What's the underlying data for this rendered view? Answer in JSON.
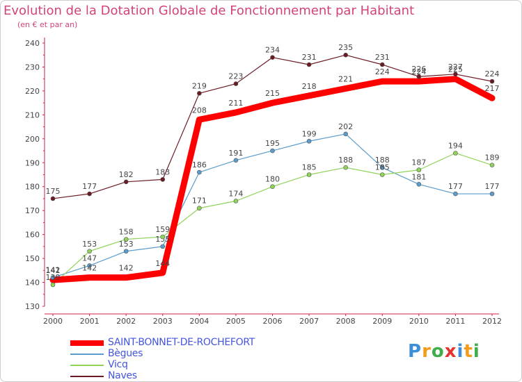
{
  "header": {
    "title": "Evolution de la Dotation Globale de Fonctionnement par Habitant",
    "subtitle": "(en € et par an)"
  },
  "logo": {
    "text": "Proxiti",
    "letters": [
      {
        "ch": "P",
        "color": "#3a8fd8"
      },
      {
        "ch": "r",
        "color": "#f39b1b"
      },
      {
        "ch": "o",
        "color": "#3fae49"
      },
      {
        "ch": "x",
        "color": "#e2352b"
      },
      {
        "ch": "i",
        "color": "#3a8fd8"
      },
      {
        "ch": "t",
        "color": "#f39b1b"
      },
      {
        "ch": "i",
        "color": "#3fae49"
      }
    ]
  },
  "chart_data": {
    "type": "line",
    "title": "Evolution de la Dotation Globale de Fonctionnement par Habitant",
    "subtitle": "(en € et par an)",
    "xlabel": "",
    "ylabel": "",
    "categories": [
      "2000",
      "2001",
      "2002",
      "2003",
      "2004",
      "2005",
      "2006",
      "2007",
      "2008",
      "2009",
      "2010",
      "2011",
      "2012"
    ],
    "ylim": [
      130,
      240
    ],
    "yticks": [
      130,
      140,
      150,
      160,
      170,
      180,
      190,
      200,
      210,
      220,
      230,
      240
    ],
    "grid": false,
    "legend_position": "bottom-left",
    "series": [
      {
        "name": "SAINT-BONNET-DE-ROCHEFORT",
        "color": "#ff0000",
        "values": [
          141,
          142,
          142,
          144,
          208,
          211,
          215,
          218,
          221,
          224,
          224,
          225,
          217
        ]
      },
      {
        "name": "Bègues",
        "color": "#5a9ccc",
        "values": [
          142,
          147,
          153,
          155,
          186,
          191,
          195,
          199,
          202,
          188,
          181,
          177,
          177
        ]
      },
      {
        "name": "Vicq",
        "color": "#8fd35a",
        "values": [
          139,
          153,
          158,
          159,
          171,
          174,
          180,
          185,
          188,
          185,
          187,
          194,
          189
        ]
      },
      {
        "name": "Naves",
        "color": "#6b1a24",
        "values": [
          175,
          177,
          182,
          183,
          219,
          223,
          234,
          231,
          235,
          231,
          226,
          227,
          224
        ]
      }
    ]
  }
}
